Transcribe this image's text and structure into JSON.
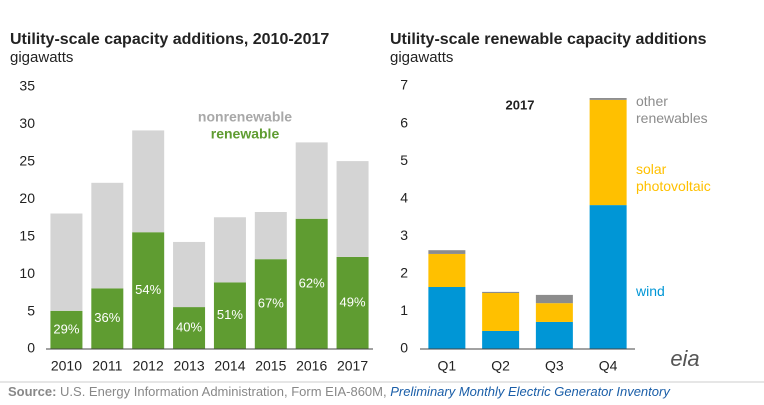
{
  "chart_data": [
    {
      "type": "stacked_bar",
      "title": "Utility-scale capacity additions, 2010-2017",
      "subtitle": "gigawatts",
      "categories": [
        "2010",
        "2011",
        "2012",
        "2013",
        "2014",
        "2015",
        "2016",
        "2017"
      ],
      "series": [
        {
          "name": "renewable",
          "color": "#5f9c31",
          "values": [
            5.1,
            8.1,
            15.6,
            5.6,
            8.9,
            12.0,
            17.4,
            12.3
          ]
        },
        {
          "name": "nonrenewable",
          "color": "#d4d4d4",
          "values": [
            13.0,
            14.1,
            13.6,
            8.7,
            8.7,
            6.3,
            10.2,
            12.8
          ]
        }
      ],
      "renewable_share_labels": [
        "29%",
        "36%",
        "54%",
        "40%",
        "51%",
        "67%",
        "62%",
        "49%"
      ],
      "ylim": [
        0,
        35
      ],
      "yticks": [
        0,
        5,
        10,
        15,
        20,
        25,
        30,
        35
      ],
      "grid": false
    },
    {
      "type": "stacked_bar",
      "title": "Utility-scale renewable capacity additions",
      "subtitle": "gigawatts",
      "annotation": "2017",
      "categories": [
        "Q1",
        "Q2",
        "Q3",
        "Q4"
      ],
      "series": [
        {
          "name": "wind",
          "color": "#0096d6",
          "values": [
            1.65,
            0.48,
            0.72,
            3.83
          ]
        },
        {
          "name": "solar photovoltaic",
          "color": "#ffc000",
          "values": [
            0.88,
            1.01,
            0.5,
            2.8
          ]
        },
        {
          "name": "other renewables",
          "color": "#8c8c8c",
          "values": [
            0.1,
            0.03,
            0.22,
            0.05
          ]
        }
      ],
      "ylim": [
        0,
        7
      ],
      "yticks": [
        0,
        1,
        2,
        3,
        4,
        5,
        6,
        7
      ],
      "grid": false
    }
  ],
  "source": {
    "label": "Source:",
    "text": "U.S. Energy Information Administration, Form EIA-860M, ",
    "link": "Preliminary Monthly Electric Generator Inventory"
  },
  "logo": "eia"
}
